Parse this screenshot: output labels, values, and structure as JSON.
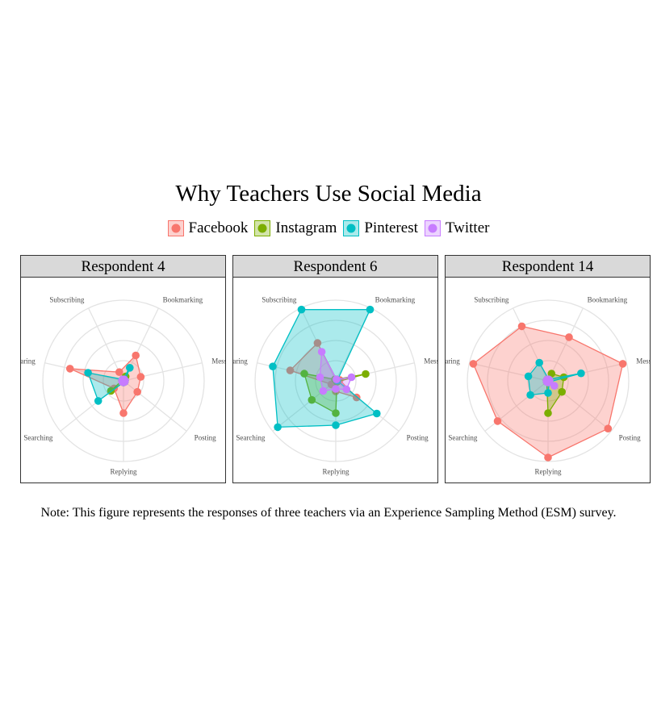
{
  "title": "Why Teachers Use Social Media",
  "note": "Note: This figure represents the responses of three teachers via an Experience Sampling Method (ESM) survey.",
  "chart_data": {
    "type": "radar",
    "axes": [
      "Bookmarking",
      "Messaging",
      "Posting",
      "Replying",
      "Searching",
      "Sharing",
      "Subscribing"
    ],
    "axis_labels_shown": [
      "Bookmarking",
      "Messagin",
      "Posting",
      "Replying",
      "Searching",
      "Sharing",
      "Subscribing"
    ],
    "rlim": [
      0,
      1
    ],
    "grid": true,
    "legend_position": "top",
    "series": [
      {
        "name": "Facebook",
        "color": "#F8766D"
      },
      {
        "name": "Instagram",
        "color": "#7CAE00"
      },
      {
        "name": "Pinterest",
        "color": "#00BFC4"
      },
      {
        "name": "Twitter",
        "color": "#C77CFF"
      }
    ],
    "facets": [
      {
        "label": "Respondent 4",
        "values": {
          "Facebook": [
            0.35,
            0.22,
            0.22,
            0.4,
            0.15,
            0.68,
            0.12
          ],
          "Instagram": [
            0.06,
            0.02,
            0.02,
            0.02,
            0.2,
            0.02,
            0.02
          ],
          "Pinterest": [
            0.18,
            0.02,
            0.02,
            0.02,
            0.4,
            0.45,
            0.02
          ],
          "Twitter": [
            0.02,
            0.02,
            0.02,
            0.02,
            0.02,
            0.02,
            0.02
          ]
        }
      },
      {
        "label": "Respondent 6",
        "values": {
          "Facebook": [
            0.02,
            0.05,
            0.33,
            0.13,
            0.07,
            0.58,
            0.52
          ],
          "Instagram": [
            0.02,
            0.38,
            0.02,
            0.4,
            0.38,
            0.4,
            0.02
          ],
          "Pinterest": [
            0.98,
            0.02,
            0.65,
            0.55,
            0.92,
            0.8,
            0.98
          ],
          "Twitter": [
            0.02,
            0.2,
            0.17,
            0.1,
            0.2,
            0.2,
            0.4
          ]
        }
      },
      {
        "label": "Respondent 14",
        "values": {
          "Facebook": [
            0.6,
            0.95,
            0.95,
            0.95,
            0.8,
            0.95,
            0.75
          ],
          "Instagram": [
            0.1,
            0.2,
            0.22,
            0.4,
            0.02,
            0.02,
            0.02
          ],
          "Pinterest": [
            0.02,
            0.42,
            0.02,
            0.15,
            0.28,
            0.25,
            0.25
          ],
          "Twitter": [
            0.02,
            0.02,
            0.1,
            0.02,
            0.02,
            0.02,
            0.02
          ]
        }
      }
    ]
  }
}
